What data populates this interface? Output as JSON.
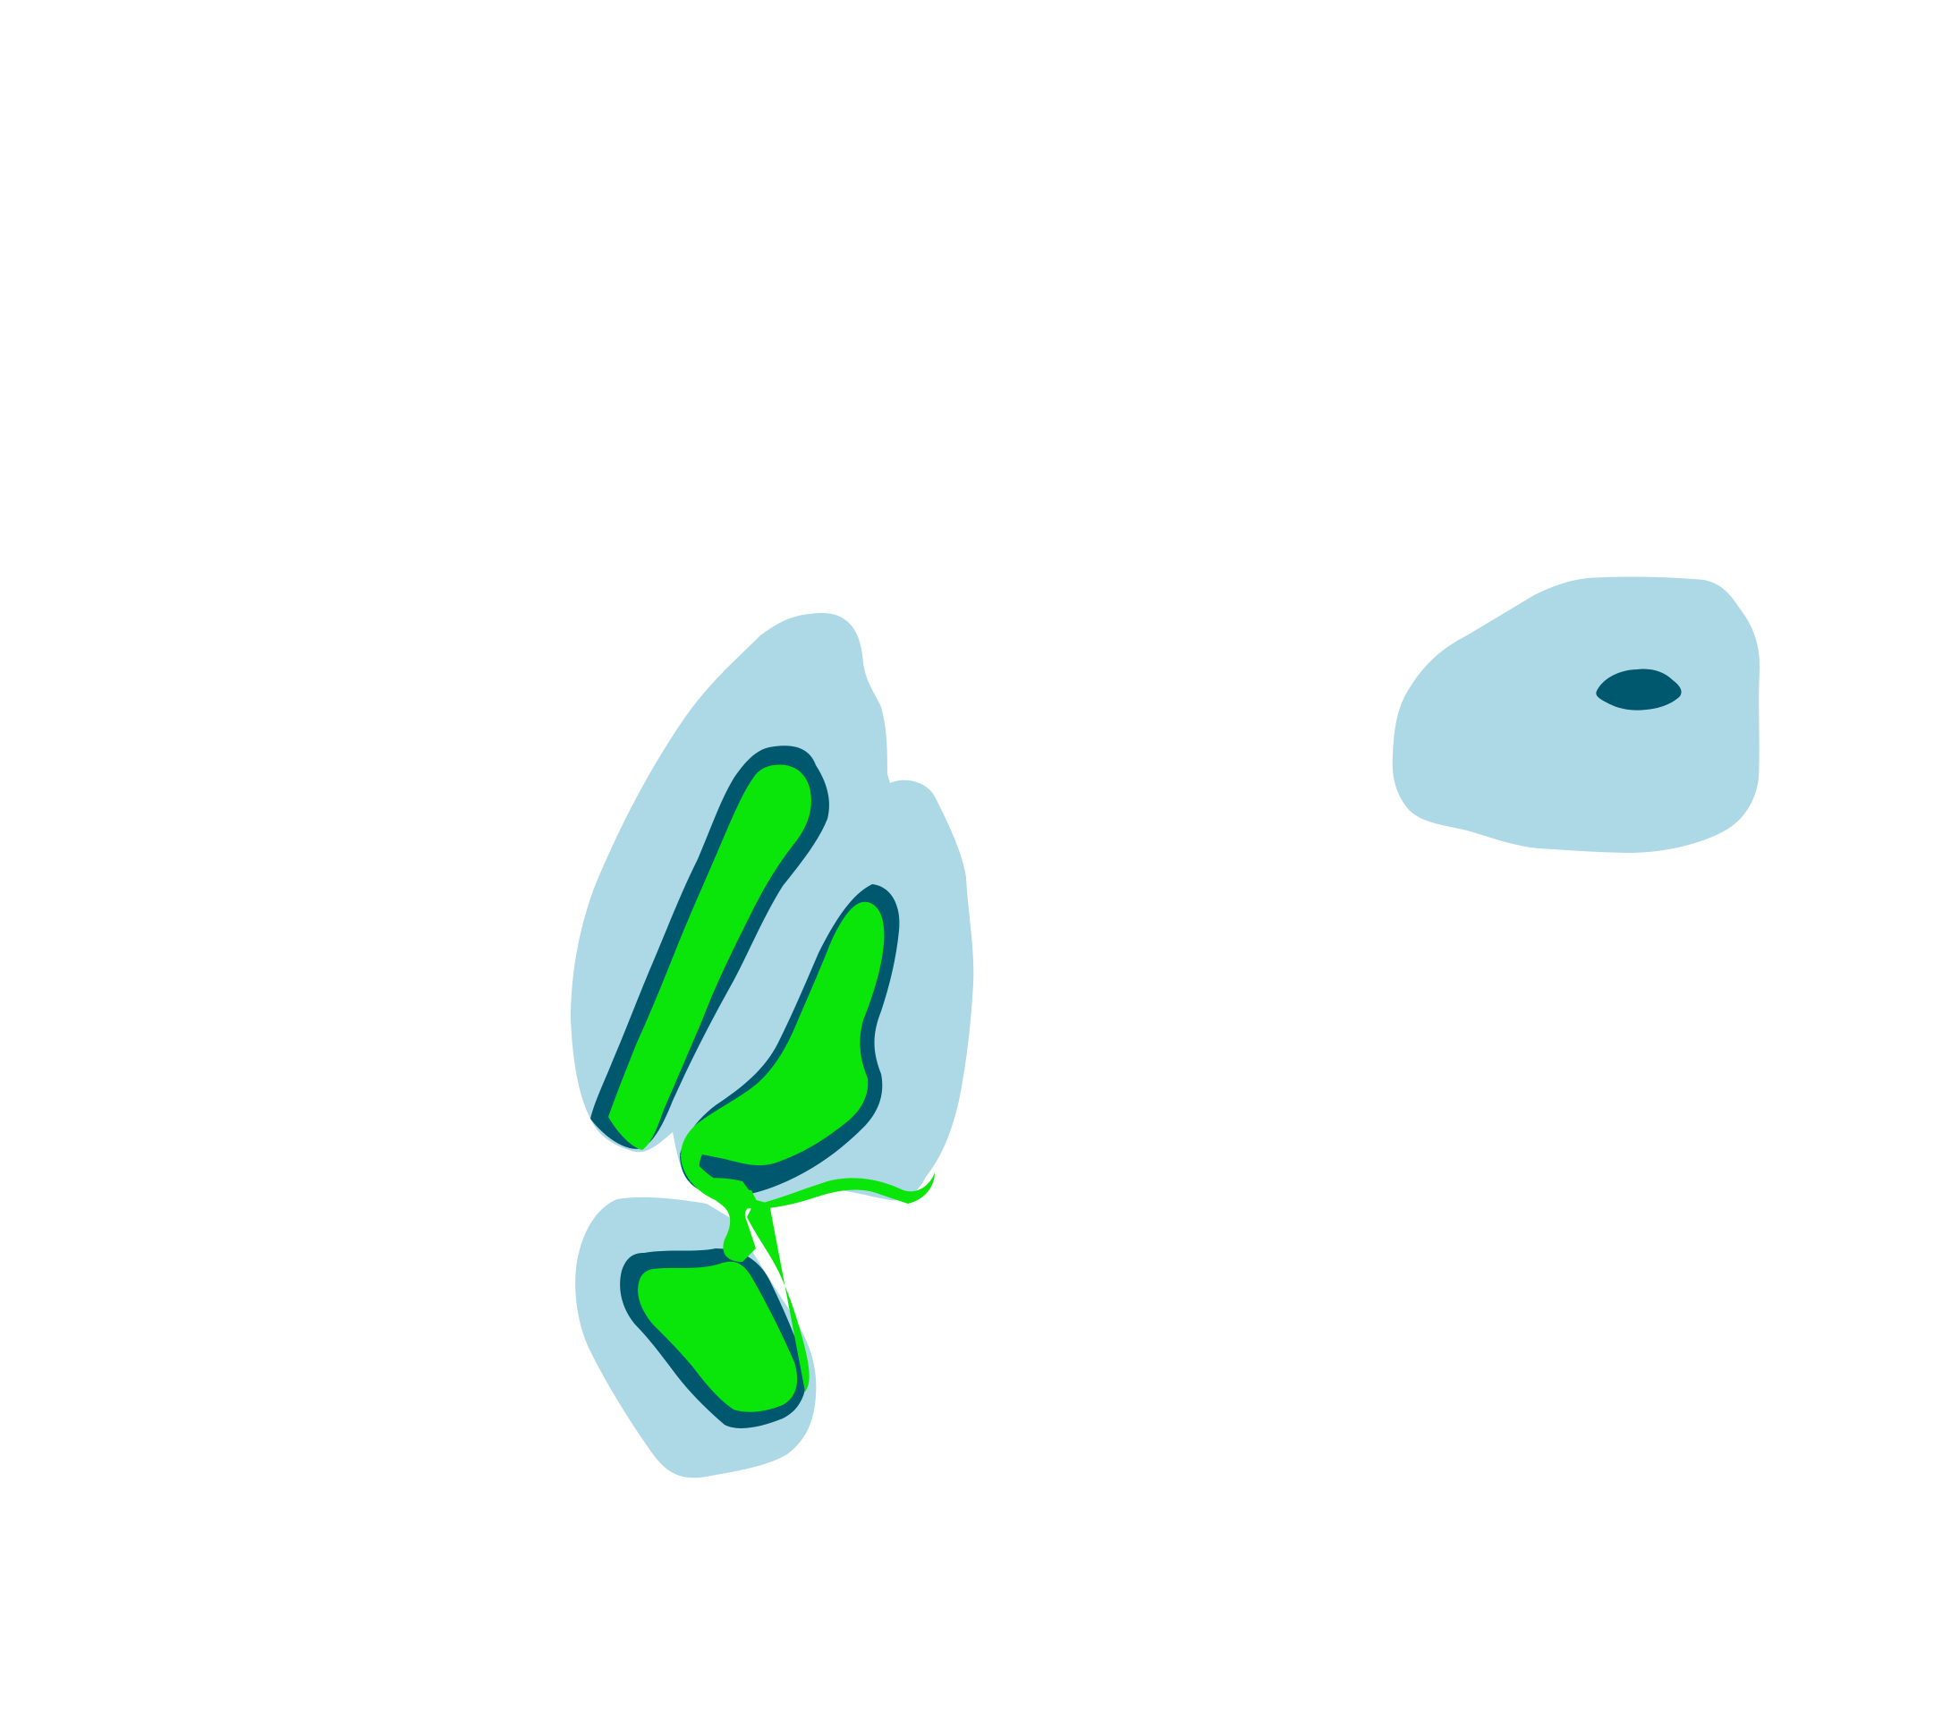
{
  "colors": {
    "background": "#ffffff",
    "light_blue": "#add8e6",
    "dark_teal": "#00586e",
    "bright_green": "#0ae60a"
  },
  "regions": [
    {
      "name": "left-cluster",
      "layers": [
        "light_blue",
        "dark_teal",
        "bright_green"
      ]
    },
    {
      "name": "lower-cluster",
      "layers": [
        "light_blue",
        "dark_teal",
        "bright_green"
      ]
    },
    {
      "name": "right-blob",
      "layers": [
        "light_blue",
        "dark_teal"
      ]
    }
  ]
}
